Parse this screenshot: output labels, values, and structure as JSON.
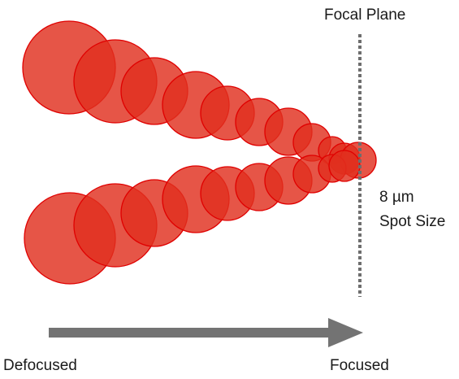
{
  "labels": {
    "focal_plane": "Focal Plane",
    "spot_size_value": "8 µm",
    "spot_size_text": "Spot Size",
    "defocused": "Defocused",
    "focused": "Focused"
  },
  "colors": {
    "spot_fill": "#e0301e",
    "spot_stroke": "#e00000",
    "focal_line": "#6e6e6e",
    "arrow": "#737373"
  },
  "spot_beams": [
    {
      "name": "upper-beam",
      "spot_count": 11
    },
    {
      "name": "lower-beam",
      "spot_count": 11
    }
  ]
}
